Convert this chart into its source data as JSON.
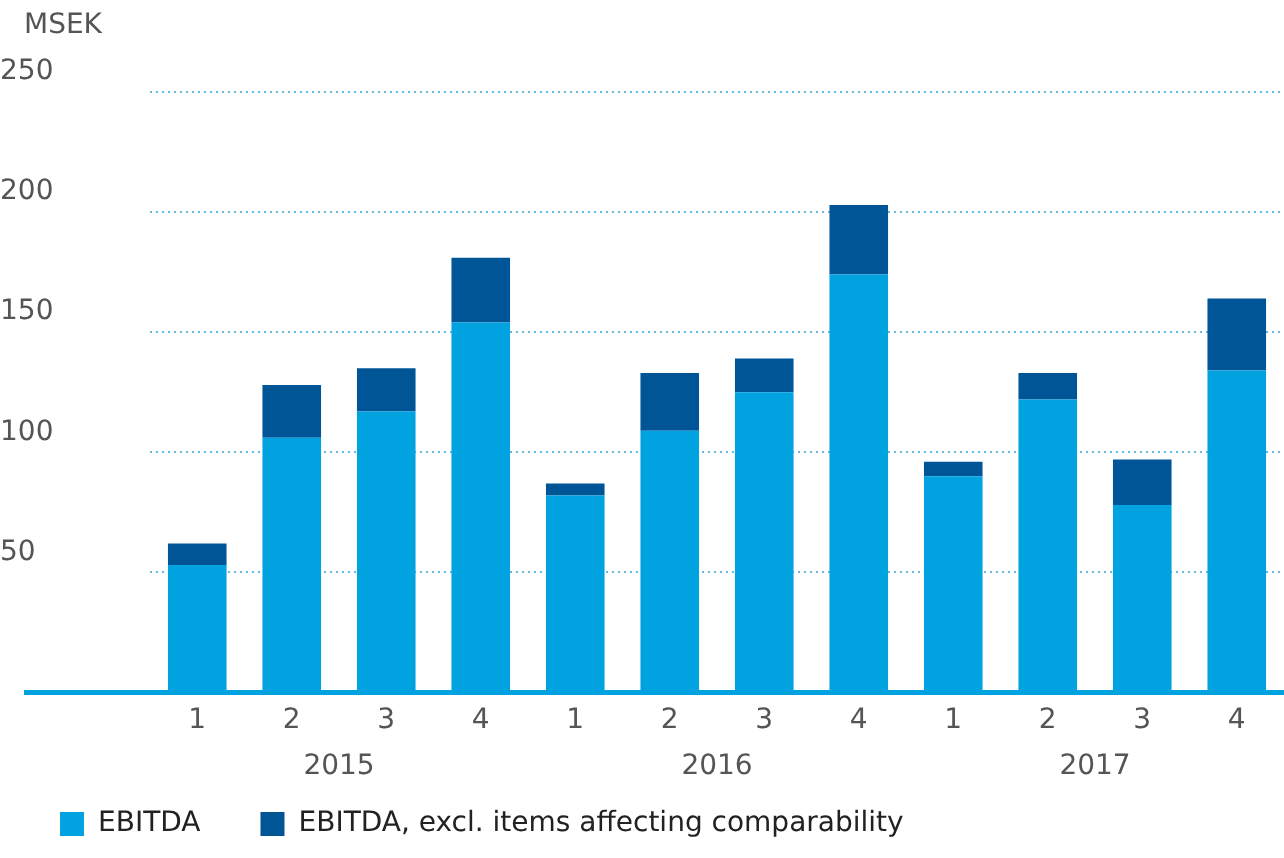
{
  "chart_data": {
    "type": "bar",
    "ylabel": "MSEK",
    "stacked": true,
    "categories": [
      "1",
      "2",
      "3",
      "4",
      "1",
      "2",
      "3",
      "4",
      "1",
      "2",
      "3",
      "4"
    ],
    "series": [
      {
        "name": "EBITDA",
        "color": "#00a3e0",
        "values": [
          53,
          106,
          117,
          154,
          82,
          109,
          125,
          174,
          90,
          122,
          78,
          134
        ]
      },
      {
        "name": "EBITDA, excl. items affecting comparability",
        "color": "#005596",
        "values": [
          9,
          22,
          18,
          27,
          5,
          24,
          14,
          29,
          6,
          11,
          19,
          30
        ]
      }
    ],
    "ylim": [
      0,
      250
    ],
    "yticks": [
      {
        "value": 0,
        "label": null
      },
      50,
      100,
      150,
      200,
      250
    ],
    "annotations": [
      "2015",
      "2016",
      "2017"
    ],
    "grid": "y",
    "legend": "bottom left"
  }
}
